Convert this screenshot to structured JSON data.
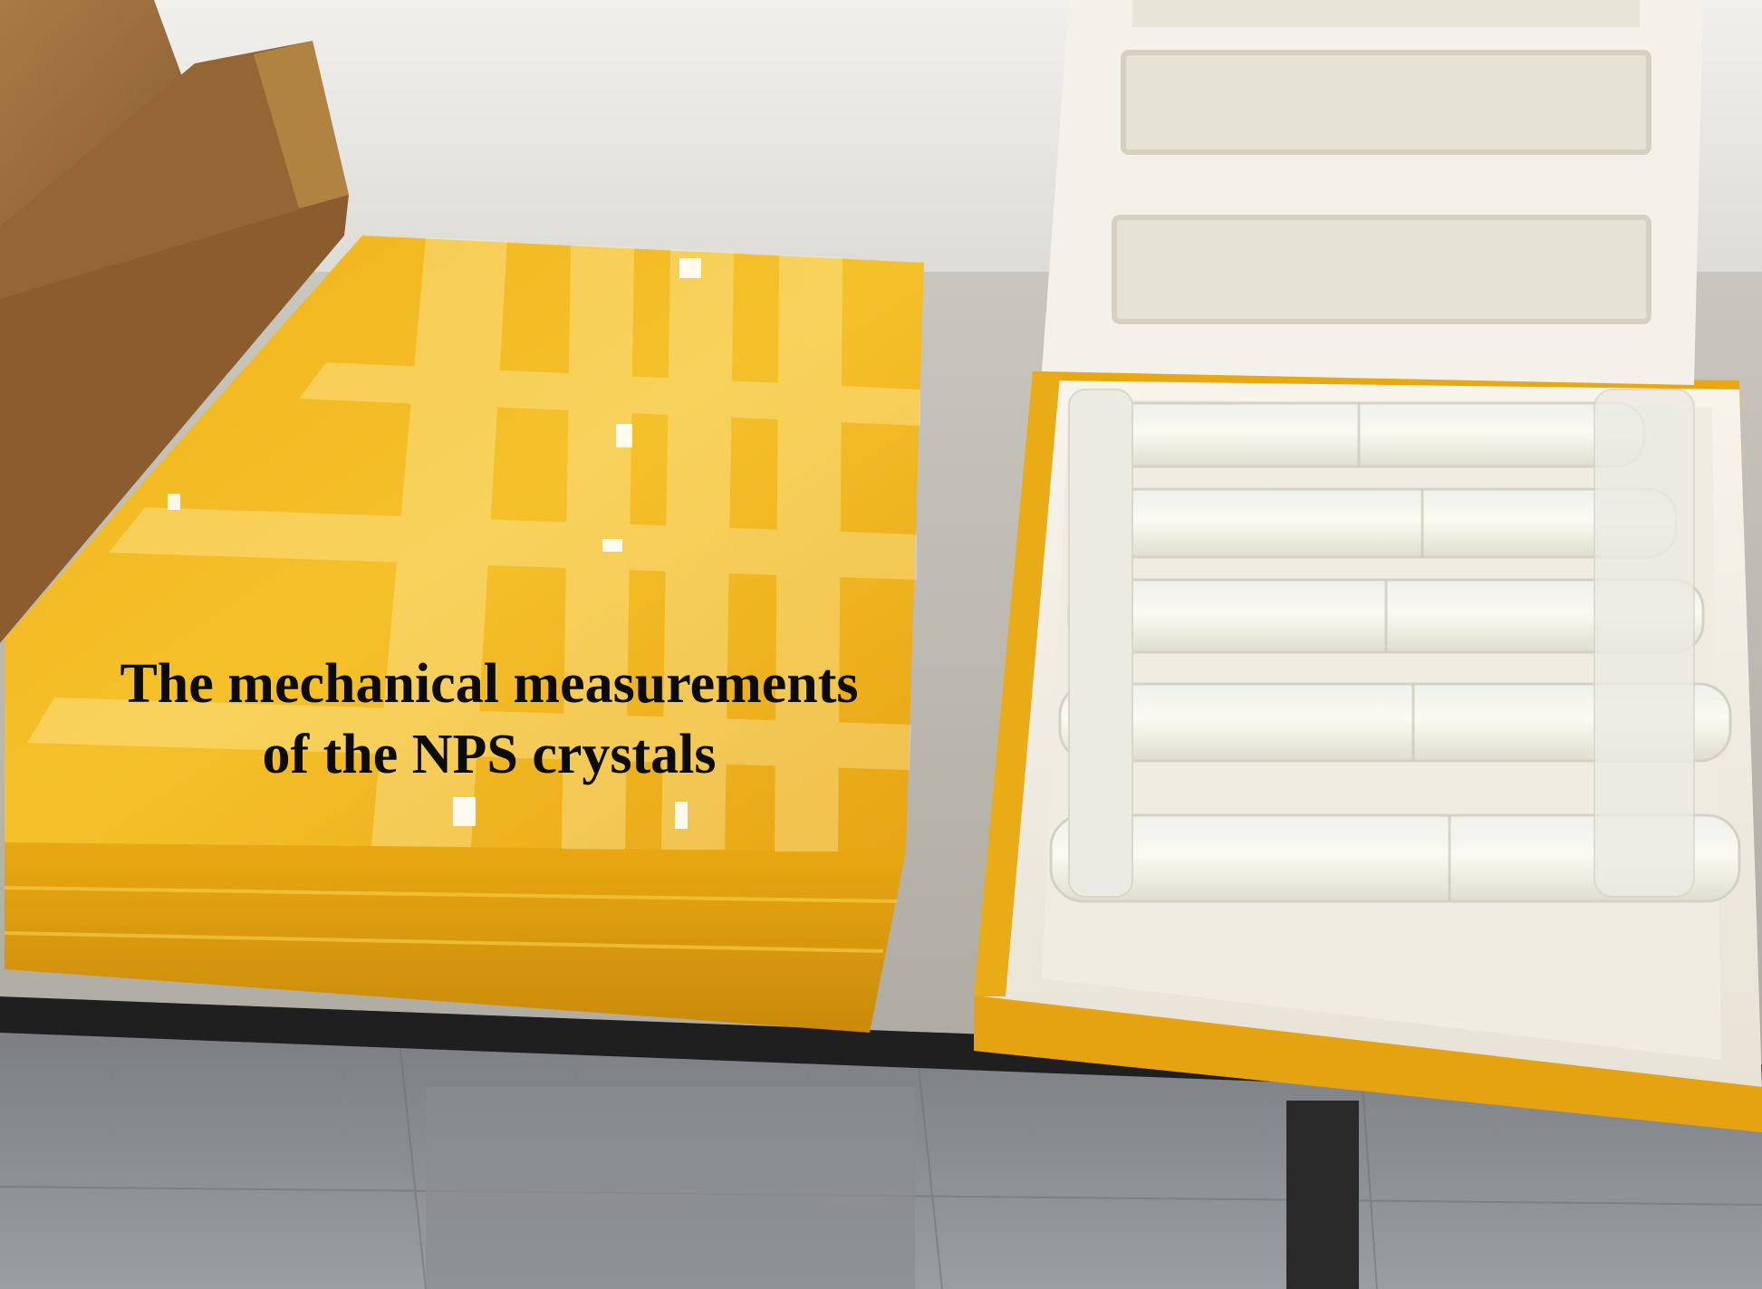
{
  "caption": {
    "line1": "The mechanical measurements",
    "line2": "of the NPS crystals"
  },
  "colors": {
    "wall": "#e9e8e3",
    "table_top": "#bdbab2",
    "table_edge": "#1c1c1c",
    "floor": "#8c8f92",
    "cardboard": "#9c6f3c",
    "yellow_tape": "#f2b81e",
    "foam_white": "#f5f2ea",
    "crystal_wrap": "#f3f1e4"
  }
}
